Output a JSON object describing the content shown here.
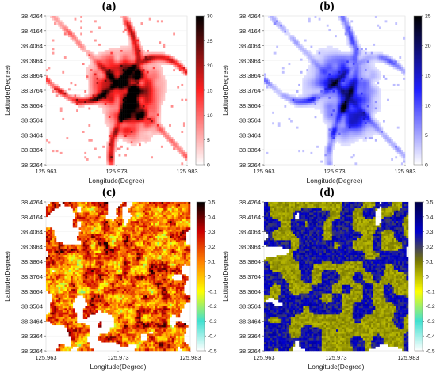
{
  "chart_data": [
    {
      "panel_label": "(a)",
      "type": "heatmap",
      "xlabel": "Longitude(Degree)",
      "ylabel": "Latitude(Degree)",
      "x_ticks": [
        "125.963",
        "125.973",
        "125.983"
      ],
      "y_ticks": [
        "38.4264",
        "38.4164",
        "38.4064",
        "38.3964",
        "38.3864",
        "38.3764",
        "38.3664",
        "38.3564",
        "38.3464",
        "38.3364",
        "38.3264"
      ],
      "colorbar_ticks": [
        "30",
        "25",
        "20",
        "15",
        "10",
        "5",
        "0"
      ],
      "colorbar_range": [
        0,
        30
      ],
      "colormap": [
        "#ffffff",
        "#ff2020",
        "#000000"
      ],
      "pattern": "sparse_urban"
    },
    {
      "panel_label": "(b)",
      "type": "heatmap",
      "xlabel": "Longitude(Degree)",
      "ylabel": "Latitude(Degree)",
      "x_ticks": [
        "125.963",
        "125.973",
        "125.983"
      ],
      "y_ticks": [
        "38.4264",
        "38.4164",
        "38.4064",
        "38.3964",
        "38.3864",
        "38.3764",
        "38.3664",
        "38.3564",
        "38.3464",
        "38.3364",
        "38.3264"
      ],
      "colorbar_ticks": [
        "25",
        "20",
        "15",
        "10",
        "5",
        "0"
      ],
      "colorbar_range": [
        0,
        25
      ],
      "colormap": [
        "#ffffff",
        "#2020ff",
        "#000000"
      ],
      "pattern": "sparse_urban"
    },
    {
      "panel_label": "(c)",
      "type": "heatmap",
      "xlabel": "Longitude(Degree)",
      "ylabel": "Latitude(Degree)",
      "x_ticks": [
        "125.963",
        "125.973",
        "125.983"
      ],
      "y_ticks": [
        "38.4264",
        "38.4164",
        "38.4064",
        "38.3964",
        "38.3864",
        "38.3764",
        "38.3664",
        "38.3564",
        "38.3464",
        "38.3364",
        "38.3264"
      ],
      "colorbar_ticks": [
        "0.5",
        "0.4",
        "0.3",
        "0.2",
        "0.1",
        "0",
        "-0.1",
        "-0.2",
        "-0.3",
        "-0.4",
        "-0.5"
      ],
      "colorbar_range": [
        -0.5,
        0.5
      ],
      "colormap": [
        "#ffffff",
        "#40e0d0",
        "#ffff00",
        "#ff8000",
        "#cc0000",
        "#000000"
      ],
      "pattern": "dense_positive"
    },
    {
      "panel_label": "(d)",
      "type": "heatmap",
      "xlabel": "Longitude(Degree)",
      "ylabel": "Latitude(Degree)",
      "x_ticks": [
        "125.963",
        "125.973",
        "125.983"
      ],
      "y_ticks": [
        "38.4264",
        "38.4164",
        "38.4064",
        "38.3964",
        "38.3864",
        "38.3764",
        "38.3664",
        "38.3564",
        "38.3464",
        "38.3364",
        "38.3264"
      ],
      "colorbar_ticks": [
        "0.5",
        "0.4",
        "0.3",
        "0.2",
        "0.1",
        "0",
        "-0.1",
        "-0.2",
        "-0.3",
        "-0.4",
        "-0.5"
      ],
      "colorbar_range": [
        -0.5,
        0.5
      ],
      "colormap": [
        "#ffffff",
        "#40e0d0",
        "#ffff00",
        "#7a7a00",
        "#0000cc",
        "#000044"
      ],
      "pattern": "dense_mixed"
    }
  ]
}
